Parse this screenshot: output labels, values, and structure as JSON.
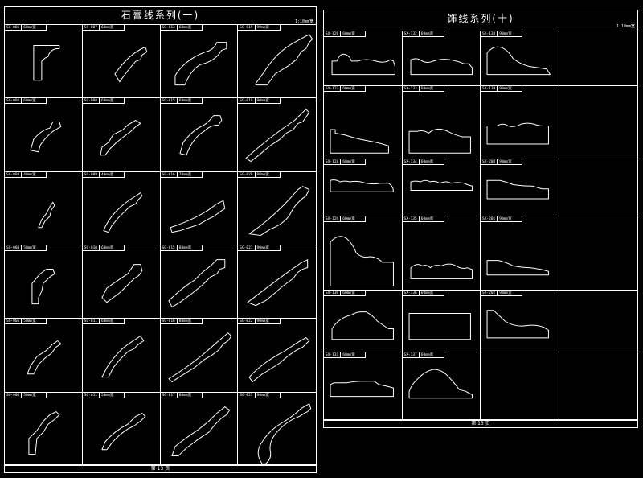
{
  "left_sheet": {
    "title": "石膏线系列(一)",
    "scale": "1:10mm宽",
    "footer": "第 13 页",
    "items": [
      {
        "code": "SG-001",
        "size": "60mm宽"
      },
      {
        "code": "SG-007",
        "size": "60mm宽"
      },
      {
        "code": "SG-013",
        "size": "60mm宽"
      },
      {
        "code": "SG-019",
        "size": "90mm宽"
      },
      {
        "code": "SG-002",
        "size": "60mm宽"
      },
      {
        "code": "SG-008",
        "size": "60mm宽"
      },
      {
        "code": "SG-015",
        "size": "60mm宽"
      },
      {
        "code": "SG-019",
        "size": "90mm宽"
      },
      {
        "code": "SG-003",
        "size": "40mm宽"
      },
      {
        "code": "SG-009",
        "size": "40mm宽"
      },
      {
        "code": "SG-016",
        "size": "70mm宽"
      },
      {
        "code": "SG-020",
        "size": "90mm宽"
      },
      {
        "code": "SG-004",
        "size": "50mm宽"
      },
      {
        "code": "SG-010",
        "size": "60mm宽"
      },
      {
        "code": "SG-015",
        "size": "80mm宽"
      },
      {
        "code": "SG-021",
        "size": "90mm宽"
      },
      {
        "code": "SG-005",
        "size": "50mm宽"
      },
      {
        "code": "SG-011",
        "size": "60mm宽"
      },
      {
        "code": "SG-016",
        "size": "80mm宽"
      },
      {
        "code": "SG-022",
        "size": "90mm宽"
      },
      {
        "code": "SG-006",
        "size": "50mm宽"
      },
      {
        "code": "SG-011",
        "size": "50mm宽"
      },
      {
        "code": "SG-017",
        "size": "80mm宽"
      },
      {
        "code": "SG-023",
        "size": "90mm宽"
      }
    ]
  },
  "right_sheet": {
    "title": "饰线系列(十)",
    "scale": "1:10mm宽",
    "footer": "第 13 页",
    "items": [
      {
        "code": "SX-126",
        "size": "60mm宽"
      },
      {
        "code": "SX-132",
        "size": "60mm宽"
      },
      {
        "code": "SX-138",
        "size": "90mm宽"
      },
      {
        "code": "",
        "size": ""
      },
      {
        "code": "SX-127",
        "size": "60mm宽"
      },
      {
        "code": "SX-133",
        "size": "60mm宽"
      },
      {
        "code": "SX-139",
        "size": "90mm宽"
      },
      {
        "code": "",
        "size": ""
      },
      {
        "code": "SX-128",
        "size": "60mm宽"
      },
      {
        "code": "SX-134",
        "size": "60mm宽"
      },
      {
        "code": "SX-200",
        "size": "90mm宽"
      },
      {
        "code": "",
        "size": ""
      },
      {
        "code": "SX-129",
        "size": "60mm宽"
      },
      {
        "code": "SX-135",
        "size": "60mm宽"
      },
      {
        "code": "SX-201",
        "size": "90mm宽"
      },
      {
        "code": "",
        "size": ""
      },
      {
        "code": "SX-130",
        "size": "60mm宽"
      },
      {
        "code": "SX-136",
        "size": "60mm宽"
      },
      {
        "code": "SX-202",
        "size": "90mm宽"
      },
      {
        "code": "",
        "size": ""
      },
      {
        "code": "SX-131",
        "size": "60mm宽"
      },
      {
        "code": "SX-137",
        "size": "60mm宽"
      },
      {
        "code": "",
        "size": ""
      },
      {
        "code": "",
        "size": ""
      }
    ]
  }
}
